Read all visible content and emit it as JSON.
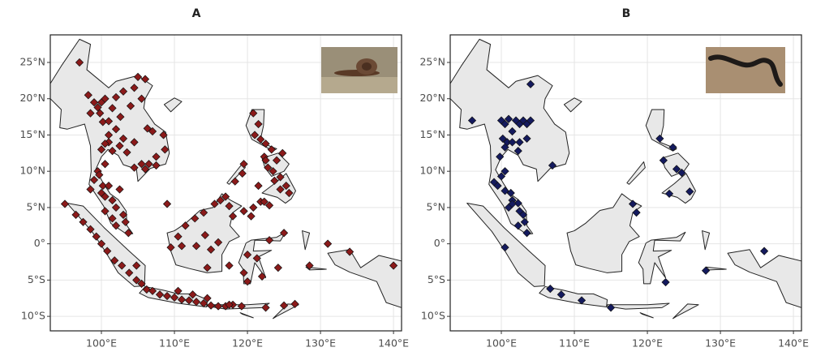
{
  "chart_data": [
    {
      "type": "scatter",
      "title": "A",
      "color": "#8b1a1a",
      "grid": true,
      "xlim": [
        93,
        141.1
      ],
      "ylim": [
        -12,
        28.8
      ],
      "xticks": [
        {
          "value": 100,
          "label": "100°E"
        },
        {
          "value": 110,
          "label": "110°E"
        },
        {
          "value": 120,
          "label": "120°E"
        },
        {
          "value": 130,
          "label": "130°E"
        },
        {
          "value": 140,
          "label": "140°E"
        }
      ],
      "yticks": [
        {
          "value": -10,
          "label": "10°S"
        },
        {
          "value": -5,
          "label": "5°S"
        },
        {
          "value": 0,
          "label": "0°"
        },
        {
          "value": 5,
          "label": "5°N"
        },
        {
          "value": 10,
          "label": "10°N"
        },
        {
          "value": 15,
          "label": "15°N"
        },
        {
          "value": 20,
          "label": "20°N"
        },
        {
          "value": 25,
          "label": "25°N"
        }
      ],
      "x": [
        97,
        98.2,
        99,
        98.5,
        99.5,
        100,
        100.5,
        99.8,
        100.2,
        101,
        101.5,
        102,
        102.6,
        103,
        104,
        105,
        106,
        104.5,
        105.5,
        106.3,
        107,
        108.5,
        107.5,
        106.5,
        105.5,
        104.5,
        106,
        107.5,
        108.7,
        103.5,
        102.5,
        101,
        100.5,
        100,
        101.5,
        101,
        102,
        103,
        104.5,
        99.5,
        99,
        100,
        100.5,
        101.5,
        102,
        103,
        103.3,
        102,
        101.5,
        100.5,
        100.2,
        99.7,
        98.5,
        101,
        100.5,
        102.5,
        103.7,
        109,
        95,
        96.5,
        97.5,
        98.5,
        99.3,
        100,
        100.8,
        101.8,
        102.8,
        103.8,
        104.8,
        104.8,
        105.5,
        106.2,
        107,
        108,
        109,
        110,
        111,
        112,
        113,
        114,
        115,
        116,
        117,
        118,
        119.2,
        110.5,
        112.5,
        114.5,
        109.5,
        111,
        110.5,
        111.5,
        112.8,
        114,
        115.5,
        116.3,
        117,
        117.5,
        113,
        114.2,
        115,
        116,
        114.5,
        117.5,
        120,
        121.3,
        120,
        122,
        119.5,
        123,
        125,
        124.2,
        121.8,
        120.5,
        121,
        121.5,
        120.8,
        121.8,
        122.5,
        123.3,
        122.3,
        122.8,
        123.5,
        124.5,
        125.3,
        125.7,
        124.5,
        123.7,
        122.5,
        124,
        124.8,
        121.5,
        119.3,
        118.3,
        119.5,
        126.5,
        125,
        122.5,
        128.5,
        131,
        134,
        140,
        117.5,
        122.3,
        123,
        118,
        119.5,
        120.8
      ],
      "y": [
        25,
        20.5,
        19.5,
        18,
        18.8,
        19.5,
        20,
        18,
        16.8,
        16.9,
        18.7,
        20.2,
        17.5,
        21,
        19,
        23,
        22.7,
        21.5,
        20,
        15.9,
        15.5,
        15,
        12,
        11,
        11,
        10.5,
        10.3,
        10.8,
        13,
        12.6,
        13.5,
        14,
        13.8,
        13,
        12.8,
        15,
        15.8,
        14.5,
        14,
        10,
        8.8,
        7,
        6.5,
        6,
        5,
        4,
        3,
        2.5,
        3.5,
        4.5,
        8,
        9.5,
        7.5,
        8,
        11,
        7.5,
        1.5,
        5.5,
        5.5,
        4,
        3,
        2,
        1,
        0,
        -1,
        -2.3,
        -3,
        -4,
        -5,
        -3,
        -5.5,
        -6.3,
        -6.5,
        -7,
        -7.2,
        -7.4,
        -7.7,
        -7.8,
        -8,
        -8.2,
        -8.5,
        -8.6,
        -8.6,
        -8.4,
        -8.6,
        -6.5,
        -7,
        -7.5,
        -0.5,
        -0.3,
        1,
        2.5,
        3.5,
        4.3,
        5.5,
        6,
        6.5,
        5.2,
        -0.3,
        1.2,
        -0.8,
        0.2,
        -3.3,
        -3,
        -1.5,
        -2,
        -5.2,
        -4.5,
        -4,
        0.5,
        1.5,
        -3.3,
        5.8,
        3.8,
        15,
        16.5,
        18,
        14.4,
        13.8,
        13,
        12,
        10.5,
        10,
        9.2,
        8,
        7,
        7.5,
        8.7,
        11.5,
        11.5,
        12.5,
        8,
        9.7,
        8.6,
        11,
        -8.3,
        -8.5,
        -8.8,
        -3,
        0,
        -1.1,
        -3,
        -8.4,
        5.8,
        5.3,
        3.8,
        4.5,
        5
      ]
    },
    {
      "type": "scatter",
      "title": "B",
      "color": "#141a5e",
      "grid": true,
      "xlim": [
        93,
        141.1
      ],
      "ylim": [
        -12,
        28.8
      ],
      "xticks": [
        {
          "value": 100,
          "label": "100°E"
        },
        {
          "value": 110,
          "label": "110°E"
        },
        {
          "value": 120,
          "label": "120°E"
        },
        {
          "value": 130,
          "label": "130°E"
        },
        {
          "value": 140,
          "label": "140°E"
        }
      ],
      "yticks": [
        {
          "value": -10,
          "label": "10°S"
        },
        {
          "value": -5,
          "label": "5°S"
        },
        {
          "value": 0,
          "label": "0°"
        },
        {
          "value": 5,
          "label": "5°N"
        },
        {
          "value": 10,
          "label": "10°N"
        },
        {
          "value": 15,
          "label": "15°N"
        },
        {
          "value": 20,
          "label": "20°N"
        },
        {
          "value": 25,
          "label": "25°N"
        }
      ],
      "x": [
        96,
        100,
        100.5,
        101,
        102,
        102.5,
        103,
        103.5,
        104,
        101.5,
        100.2,
        100.8,
        101.5,
        102.5,
        103.5,
        102.3,
        100.5,
        99.8,
        100.5,
        100,
        99,
        99.5,
        100.5,
        101.3,
        101.5,
        102.3,
        102.5,
        103,
        103.2,
        102.3,
        103.5,
        101,
        101.5,
        107,
        104,
        100.5,
        106.7,
        108.2,
        111,
        115,
        118,
        118.5,
        121.7,
        122.2,
        123.5,
        124,
        124.7,
        125.8,
        123,
        122.5,
        128,
        136
      ],
      "y": [
        17,
        17,
        16.5,
        17.2,
        17,
        16.5,
        17,
        16.5,
        17,
        15.5,
        14.5,
        14,
        14,
        14,
        14.5,
        12.8,
        13.3,
        12,
        10,
        9.3,
        8.5,
        8,
        7.3,
        7,
        6,
        5.6,
        4.5,
        4,
        3,
        2.5,
        1.5,
        5,
        5.5,
        10.8,
        22,
        -0.5,
        -6.2,
        -7,
        -7.8,
        -8.8,
        5.5,
        4.3,
        14.5,
        11.5,
        13.3,
        10.3,
        9.8,
        7.2,
        6.9,
        -5.3,
        -3.7,
        -1
      ]
    }
  ]
}
